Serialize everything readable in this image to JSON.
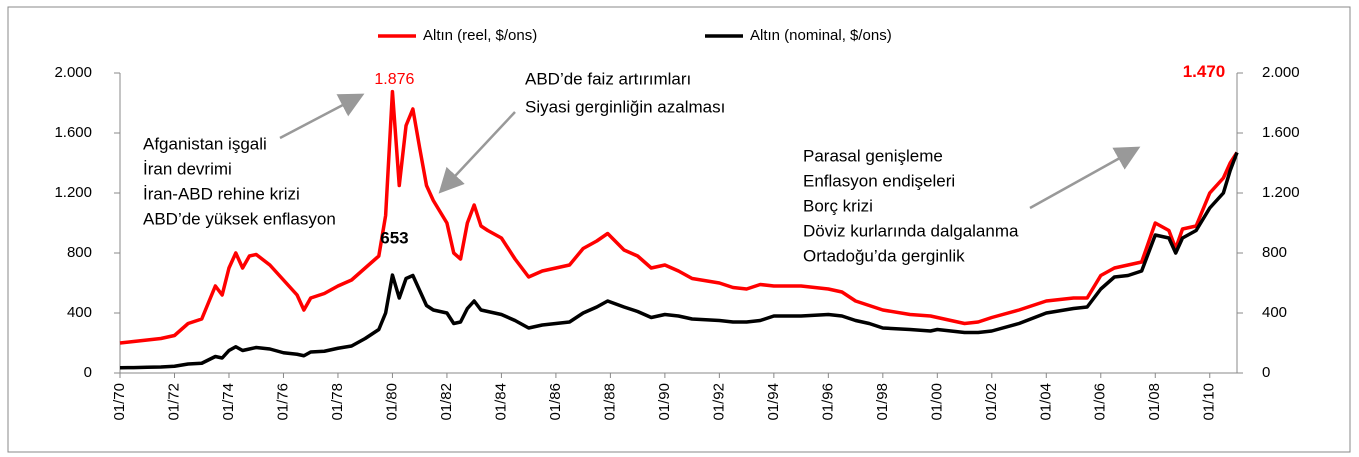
{
  "chart_data": {
    "type": "line",
    "x": [
      1970,
      1970.5,
      1971,
      1971.5,
      1972,
      1972.5,
      1973,
      1973.5,
      1973.75,
      1974,
      1974.25,
      1974.5,
      1974.75,
      1975,
      1975.5,
      1976,
      1976.5,
      1976.75,
      1977,
      1977.5,
      1978,
      1978.5,
      1979,
      1979.5,
      1979.75,
      1980,
      1980.25,
      1980.5,
      1980.75,
      1981,
      1981.25,
      1981.5,
      1982,
      1982.25,
      1982.5,
      1982.75,
      1983,
      1983.25,
      1983.5,
      1984,
      1984.5,
      1985,
      1985.5,
      1986,
      1986.5,
      1987,
      1987.5,
      1987.9,
      1988.5,
      1989,
      1989.5,
      1990,
      1990.5,
      1991,
      1992,
      1992.5,
      1993,
      1993.5,
      1994,
      1995,
      1996,
      1996.5,
      1997,
      1997.5,
      1998,
      1999,
      1999.75,
      2000,
      2001,
      2001.5,
      2002,
      2003,
      2004,
      2005,
      2005.5,
      2006,
      2006.5,
      2007,
      2007.5,
      2008,
      2008.5,
      2008.75,
      2009,
      2009.5,
      2010,
      2010.5,
      2010.75,
      2011
    ],
    "series": [
      {
        "name": "Altın (reel, $/ons)",
        "color": "#ff0000",
        "values": [
          200,
          210,
          220,
          230,
          250,
          330,
          360,
          580,
          520,
          700,
          800,
          700,
          780,
          790,
          720,
          620,
          520,
          420,
          500,
          530,
          580,
          620,
          700,
          780,
          1050,
          1876,
          1250,
          1650,
          1760,
          1500,
          1250,
          1150,
          1000,
          800,
          760,
          1000,
          1120,
          980,
          950,
          900,
          760,
          640,
          680,
          700,
          720,
          830,
          880,
          930,
          820,
          780,
          700,
          720,
          680,
          630,
          600,
          570,
          560,
          590,
          580,
          580,
          560,
          540,
          480,
          450,
          420,
          390,
          380,
          370,
          330,
          340,
          370,
          420,
          480,
          500,
          500,
          650,
          700,
          720,
          740,
          1000,
          950,
          830,
          960,
          980,
          1200,
          1300,
          1400,
          1470
        ],
        "value_labels": [
          null,
          null,
          null,
          null,
          null,
          null,
          null,
          null,
          null,
          null,
          null,
          null,
          null,
          null,
          null,
          null,
          null,
          null,
          null,
          null,
          null,
          null,
          null,
          null,
          null,
          "1.876",
          null,
          null,
          null,
          null,
          null,
          null,
          null,
          null,
          null,
          null,
          null,
          null,
          null,
          null,
          null,
          null,
          null,
          null,
          null,
          null,
          null,
          null,
          null,
          null,
          null,
          null,
          null,
          null,
          null,
          null,
          null,
          null,
          null,
          null,
          null,
          null,
          null,
          null,
          null,
          null,
          null,
          null,
          null,
          null,
          null,
          null,
          null,
          null,
          null,
          null,
          null,
          null,
          null,
          null,
          null,
          null,
          null,
          null,
          null,
          null,
          null,
          "1.470"
        ]
      },
      {
        "name": "Altın (nominal,  $/ons)",
        "color": "#000000",
        "values": [
          35,
          36,
          38,
          40,
          45,
          60,
          65,
          110,
          100,
          150,
          175,
          150,
          160,
          170,
          160,
          135,
          125,
          115,
          140,
          145,
          165,
          180,
          230,
          290,
          400,
          653,
          500,
          630,
          650,
          550,
          450,
          420,
          400,
          330,
          340,
          430,
          480,
          420,
          410,
          390,
          350,
          300,
          320,
          330,
          340,
          400,
          440,
          480,
          440,
          410,
          370,
          390,
          380,
          360,
          350,
          340,
          340,
          350,
          380,
          380,
          390,
          380,
          350,
          330,
          300,
          290,
          280,
          290,
          270,
          270,
          280,
          330,
          400,
          430,
          440,
          560,
          640,
          650,
          680,
          920,
          900,
          800,
          900,
          950,
          1100,
          1200,
          1350,
          1470
        ],
        "value_labels": [
          null,
          null,
          null,
          null,
          null,
          null,
          null,
          null,
          null,
          null,
          null,
          null,
          null,
          null,
          null,
          null,
          null,
          null,
          null,
          null,
          null,
          null,
          null,
          null,
          null,
          "653",
          null,
          null,
          null,
          null,
          null,
          null,
          null,
          null,
          null,
          null,
          null,
          null,
          null,
          null,
          null,
          null,
          null,
          null,
          null,
          null,
          null,
          null,
          null,
          null,
          null,
          null,
          null,
          null,
          null,
          null,
          null,
          null,
          null,
          null,
          null,
          null,
          null,
          null,
          null,
          null,
          null,
          null,
          null,
          null,
          null,
          null,
          null,
          null,
          null,
          null,
          null,
          null,
          null,
          null,
          null,
          null,
          null,
          null,
          null,
          null,
          null,
          null
        ]
      }
    ],
    "xlim": [
      1970,
      2011
    ],
    "xticks": [
      {
        "value": 1970,
        "label": "01/70"
      },
      {
        "value": 1972,
        "label": "01/72"
      },
      {
        "value": 1974,
        "label": "01/74"
      },
      {
        "value": 1976,
        "label": "01/76"
      },
      {
        "value": 1978,
        "label": "01/78"
      },
      {
        "value": 1980,
        "label": "01/80"
      },
      {
        "value": 1982,
        "label": "01/82"
      },
      {
        "value": 1984,
        "label": "01/84"
      },
      {
        "value": 1986,
        "label": "01/86"
      },
      {
        "value": 1988,
        "label": "01/88"
      },
      {
        "value": 1990,
        "label": "01/90"
      },
      {
        "value": 1992,
        "label": "01/92"
      },
      {
        "value": 1994,
        "label": "01/94"
      },
      {
        "value": 1996,
        "label": "01/96"
      },
      {
        "value": 1998,
        "label": "01/98"
      },
      {
        "value": 2000,
        "label": "01/00"
      },
      {
        "value": 2002,
        "label": "01/02"
      },
      {
        "value": 2004,
        "label": "01/04"
      },
      {
        "value": 2006,
        "label": "01/06"
      },
      {
        "value": 2008,
        "label": "01/08"
      },
      {
        "value": 2010,
        "label": "01/10"
      }
    ],
    "ylim": [
      0,
      2000
    ],
    "yticks": [
      0,
      400,
      800,
      {
        "value": 1200,
        "label": "1.200"
      },
      {
        "value": 1600,
        "label": "1.600"
      },
      {
        "value": 2000,
        "label": "2.000"
      }
    ],
    "y2lim": [
      0,
      2000
    ],
    "y2ticks": [
      0,
      400,
      800,
      {
        "value": 1200,
        "label": "1.200"
      },
      {
        "value": 1600,
        "label": "1.600"
      },
      {
        "value": 2000,
        "label": "2.000"
      }
    ],
    "legend": "top",
    "annotations": [
      [
        "Afganistan işgali",
        "İran devrimi",
        "İran-ABD rehine krizi",
        "ABD’de yüksek enflasyon"
      ],
      [
        "ABD’de faiz artırımları",
        "Siyasi gerginliğin azalması"
      ],
      [
        "Parasal genişleme",
        "Enflasyon endişeleri",
        "Borç krizi",
        "Döviz kurlarında dalgalanma",
        "Ortadoğu’da gerginlik"
      ]
    ]
  }
}
